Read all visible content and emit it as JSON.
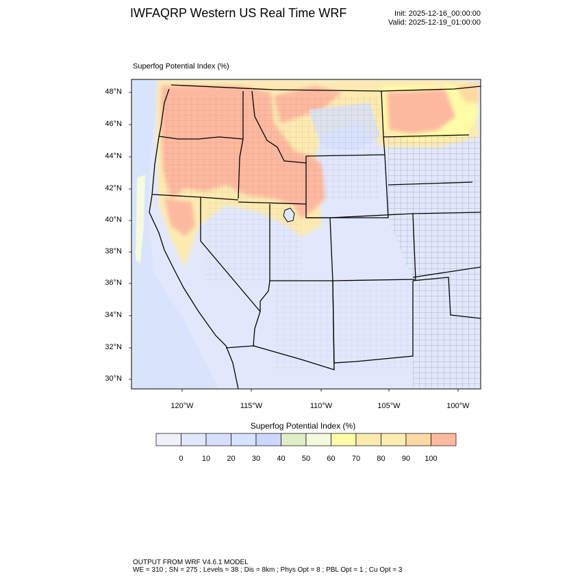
{
  "header": {
    "title": "IWFAQRP Western US Real Time WRF",
    "init": "Init: 2025-12-16_00:00:00",
    "valid": "Valid: 2025-12-19_01:00:00"
  },
  "plot": {
    "label": "Superfog Potential Index   (%)"
  },
  "map": {
    "projection": "lambert conformal",
    "lat_ticks": [
      "48°N",
      "46°N",
      "44°N",
      "42°N",
      "40°N",
      "38°N",
      "36°N",
      "34°N",
      "32°N",
      "30°N"
    ],
    "lon_ticks": [
      "120°W",
      "115°W",
      "110°W",
      "105°W",
      "100°W"
    ],
    "background_color": "#e1e8fc",
    "high_color": "#fdb9a0"
  },
  "colorbar": {
    "title": "Superfog Potential Index  (%)",
    "labels": [
      "0",
      "10",
      "20",
      "30",
      "40",
      "50",
      "60",
      "70",
      "80",
      "90",
      "100"
    ],
    "colors": [
      "#eef1f8",
      "#e1e8fc",
      "#d6e0fc",
      "#d7e2fc",
      "#cdd6fc",
      "#dfedc9",
      "#f4fbe0",
      "#fefca6",
      "#fdeab1",
      "#fdecb0",
      "#fdd9a3",
      "#fdb9a0"
    ]
  },
  "footer": {
    "line1": "OUTPUT FROM WRF V4.6.1 MODEL",
    "line2": "WE = 310 ; SN = 275 ; Levels = 38 ; Dis = 8km ; Phys Opt = 8 ; PBL Opt = 1 ; Cu Opt = 3"
  }
}
